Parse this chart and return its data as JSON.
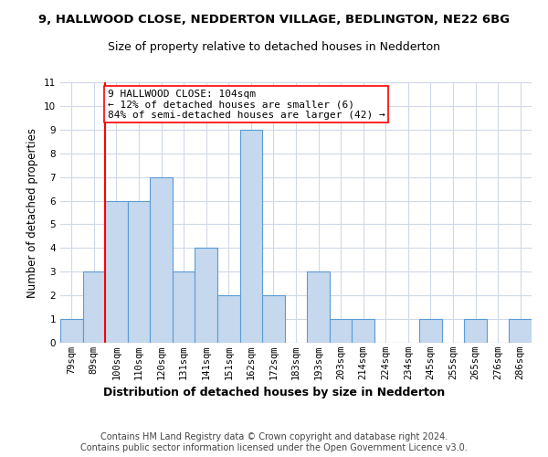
{
  "title": "9, HALLWOOD CLOSE, NEDDERTON VILLAGE, BEDLINGTON, NE22 6BG",
  "subtitle": "Size of property relative to detached houses in Nedderton",
  "xlabel": "Distribution of detached houses by size in Nedderton",
  "ylabel": "Number of detached properties",
  "categories": [
    "79sqm",
    "89sqm",
    "100sqm",
    "110sqm",
    "120sqm",
    "131sqm",
    "141sqm",
    "151sqm",
    "162sqm",
    "172sqm",
    "183sqm",
    "193sqm",
    "203sqm",
    "214sqm",
    "224sqm",
    "234sqm",
    "245sqm",
    "255sqm",
    "265sqm",
    "276sqm",
    "286sqm"
  ],
  "values": [
    1,
    3,
    6,
    6,
    7,
    3,
    4,
    2,
    9,
    2,
    0,
    3,
    1,
    1,
    0,
    0,
    1,
    0,
    1,
    0,
    1
  ],
  "bar_color": "#c5d8ed",
  "bar_edge_color": "#5b9bd5",
  "red_line_x": 2,
  "annotation_text": "9 HALLWOOD CLOSE: 104sqm\n← 12% of detached houses are smaller (6)\n84% of semi-detached houses are larger (42) →",
  "annotation_box_color": "white",
  "annotation_box_edge_color": "red",
  "red_line_color": "red",
  "ylim": [
    0,
    11
  ],
  "yticks": [
    0,
    1,
    2,
    3,
    4,
    5,
    6,
    7,
    8,
    9,
    10,
    11
  ],
  "grid_color": "#d0d8e8",
  "background_color": "white",
  "footer_line1": "Contains HM Land Registry data © Crown copyright and database right 2024.",
  "footer_line2": "Contains public sector information licensed under the Open Government Licence v3.0.",
  "title_fontsize": 9.5,
  "subtitle_fontsize": 9,
  "xlabel_fontsize": 9,
  "ylabel_fontsize": 8.5,
  "tick_fontsize": 7.5,
  "footer_fontsize": 7,
  "annotation_fontsize": 8
}
